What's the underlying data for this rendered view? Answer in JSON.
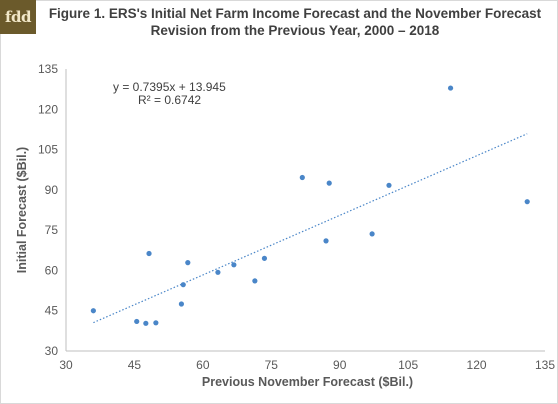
{
  "logo": {
    "text": "fdd"
  },
  "chart_data": {
    "type": "scatter",
    "title": "Figure 1. ERS's Initial Net Farm Income Forecast and the November Forecast Revision from the Previous Year, 2000 – 2018",
    "xlabel": "Previous November Forecast ($Bil.)",
    "ylabel": "Initial Forecast ($Bil.)",
    "xlim": [
      30,
      135
    ],
    "ylim": [
      30,
      135
    ],
    "xticks": [
      "30",
      "45",
      "60",
      "75",
      "90",
      "105",
      "120",
      "135"
    ],
    "yticks": [
      "30",
      "45",
      "60",
      "75",
      "90",
      "105",
      "120",
      "135"
    ],
    "grid": false,
    "point_color": "#4a86c8",
    "trendline": {
      "type": "linear",
      "slope": 0.7395,
      "intercept": 13.945,
      "color": "#4a86c8",
      "style": "dotted",
      "equation": "y = 0.7395x + 13.945",
      "r_squared": "R² = 0.6742"
    },
    "points": [
      {
        "x": 36.0,
        "y": 45.0
      },
      {
        "x": 45.5,
        "y": 41.0
      },
      {
        "x": 47.5,
        "y": 40.3
      },
      {
        "x": 48.2,
        "y": 66.3
      },
      {
        "x": 49.7,
        "y": 40.5
      },
      {
        "x": 55.3,
        "y": 47.5
      },
      {
        "x": 55.7,
        "y": 54.7
      },
      {
        "x": 56.7,
        "y": 62.9
      },
      {
        "x": 63.3,
        "y": 59.3
      },
      {
        "x": 66.8,
        "y": 62.1
      },
      {
        "x": 71.4,
        "y": 56.1
      },
      {
        "x": 73.5,
        "y": 64.5
      },
      {
        "x": 81.8,
        "y": 94.6
      },
      {
        "x": 87.0,
        "y": 71.0
      },
      {
        "x": 87.7,
        "y": 92.5
      },
      {
        "x": 97.1,
        "y": 73.6
      },
      {
        "x": 100.8,
        "y": 91.7
      },
      {
        "x": 114.3,
        "y": 127.9
      },
      {
        "x": 131.1,
        "y": 85.6
      }
    ]
  }
}
